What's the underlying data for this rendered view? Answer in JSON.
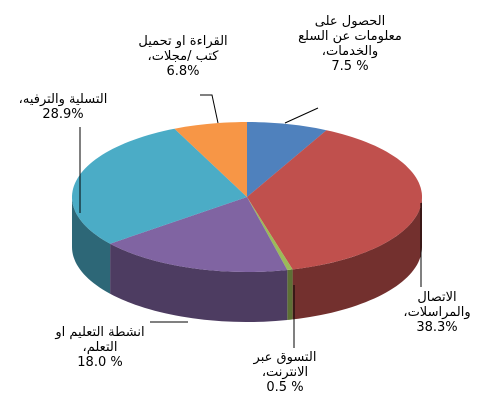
{
  "chart_data": {
    "type": "pie3d",
    "categories": [
      "الحصول على معلومات عن السلع والخدمات،",
      "الاتصال والمراسلات،",
      "التسوق عبر الانترنت،",
      "انشطة التعليم او التعلم،",
      "التسلية والترفيه،",
      "القراءة او تحميل كتب /مجلات،"
    ],
    "values": [
      7.5,
      38.3,
      0.5,
      18.0,
      28.9,
      6.8
    ],
    "value_labels": [
      "7.5 %",
      "38.3%",
      "0.5 %",
      "18.0 %",
      "28.9%",
      "6.8%"
    ],
    "colors": [
      "#4f81bd",
      "#c0504d",
      "#9bbb59",
      "#8064a2",
      "#4bacc6",
      "#f79646"
    ]
  }
}
